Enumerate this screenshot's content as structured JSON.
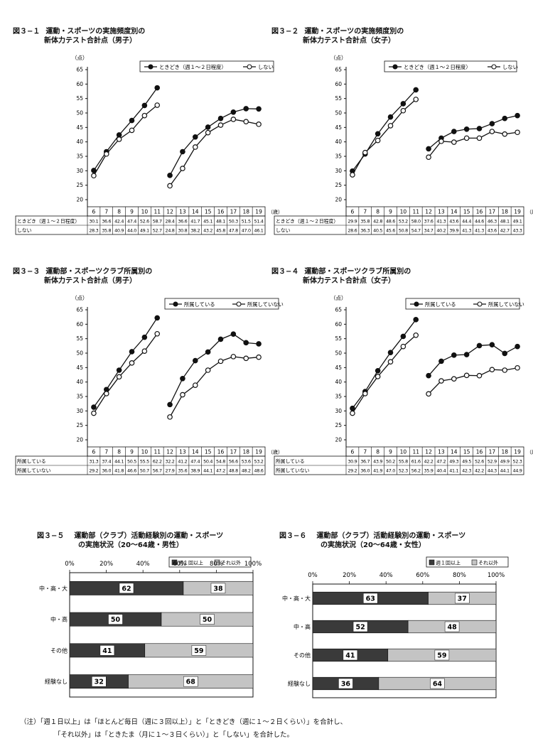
{
  "chart_data": [
    {
      "type": "line",
      "fig": "図３−１",
      "title": [
        "運動・スポーツの実施頻度別の",
        "新体力テスト合計点（男子）"
      ],
      "ylabel": "（点）",
      "xunit": "（歳）",
      "ylim": [
        20,
        65
      ],
      "yticks": [
        20,
        25,
        30,
        35,
        40,
        45,
        50,
        55,
        60,
        65
      ],
      "x": [
        "6",
        "7",
        "8",
        "9",
        "10",
        "11",
        "12",
        "13",
        "14",
        "15",
        "16",
        "17",
        "18",
        "19"
      ],
      "series": [
        {
          "name": "ときどき（週１〜２日程度）",
          "marker": "filled",
          "values": [
            30.1,
            36.6,
            42.4,
            47.4,
            52.6,
            58.7,
            28.4,
            36.6,
            41.7,
            45.1,
            48.1,
            50.3,
            51.5,
            51.4
          ]
        },
        {
          "name": "しない",
          "marker": "open",
          "values": [
            28.3,
            35.8,
            40.9,
            44.0,
            49.1,
            52.7,
            24.8,
            30.8,
            38.2,
            43.2,
            45.8,
            47.8,
            47.0,
            46.1
          ]
        }
      ]
    },
    {
      "type": "line",
      "fig": "図３−２",
      "title": [
        "運動・スポーツの実施頻度別の",
        "新体力テスト合計点（女子）"
      ],
      "ylabel": "（点）",
      "xunit": "（歳）",
      "ylim": [
        20,
        65
      ],
      "yticks": [
        20,
        25,
        30,
        35,
        40,
        45,
        50,
        55,
        60,
        65
      ],
      "x": [
        "6",
        "7",
        "8",
        "9",
        "10",
        "11",
        "12",
        "13",
        "14",
        "15",
        "16",
        "17",
        "18",
        "19"
      ],
      "series": [
        {
          "name": "ときどき（週１〜２日程度）",
          "marker": "filled",
          "values": [
            29.9,
            35.8,
            42.8,
            48.6,
            53.2,
            58.0,
            37.6,
            41.3,
            43.6,
            44.4,
            44.6,
            46.3,
            48.1,
            49.1
          ]
        },
        {
          "name": "しない",
          "marker": "open",
          "values": [
            28.6,
            36.3,
            40.5,
            45.6,
            50.8,
            54.7,
            34.7,
            40.2,
            39.9,
            41.3,
            41.3,
            43.6,
            42.7,
            43.3
          ]
        }
      ]
    },
    {
      "type": "line",
      "fig": "図３−３",
      "title": [
        "運動部・スポーツクラブ所属別の",
        "新体力テスト合計点（男子）"
      ],
      "ylabel": "（点）",
      "xunit": "（歳）",
      "ylim": [
        20,
        65
      ],
      "yticks": [
        20,
        25,
        30,
        35,
        40,
        45,
        50,
        55,
        60,
        65
      ],
      "x": [
        "6",
        "7",
        "8",
        "9",
        "10",
        "11",
        "12",
        "13",
        "14",
        "15",
        "16",
        "17",
        "18",
        "19"
      ],
      "series": [
        {
          "name": "所属している",
          "marker": "filled",
          "values": [
            31.3,
            37.4,
            44.1,
            50.5,
            55.5,
            62.2,
            32.2,
            41.2,
            47.4,
            50.4,
            54.8,
            56.6,
            53.6,
            53.2
          ]
        },
        {
          "name": "所属していない",
          "marker": "open",
          "values": [
            29.2,
            36.0,
            41.8,
            46.6,
            50.7,
            56.7,
            27.9,
            35.6,
            38.9,
            44.1,
            47.2,
            48.8,
            48.2,
            48.6
          ]
        }
      ]
    },
    {
      "type": "line",
      "fig": "図３−４",
      "title": [
        "運動部・スポーツクラブ所属別の",
        "新体力テスト合計点（女子）"
      ],
      "ylabel": "（点）",
      "xunit": "（歳）",
      "ylim": [
        20,
        65
      ],
      "yticks": [
        20,
        25,
        30,
        35,
        40,
        45,
        50,
        55,
        60,
        65
      ],
      "x": [
        "6",
        "7",
        "8",
        "9",
        "10",
        "11",
        "12",
        "13",
        "14",
        "15",
        "16",
        "17",
        "18",
        "19"
      ],
      "series": [
        {
          "name": "所属している",
          "marker": "filled",
          "values": [
            30.9,
            36.7,
            43.9,
            50.2,
            55.8,
            61.6,
            42.2,
            47.2,
            49.3,
            49.5,
            52.6,
            52.9,
            49.9,
            52.3
          ]
        },
        {
          "name": "所属していない",
          "marker": "open",
          "values": [
            29.2,
            36.0,
            41.9,
            47.0,
            52.3,
            56.2,
            35.9,
            40.4,
            41.1,
            42.3,
            42.2,
            44.3,
            44.1,
            44.9
          ]
        }
      ]
    },
    {
      "type": "bar",
      "stacked": true,
      "orientation": "horizontal",
      "fig": "図３−５",
      "title": [
        "運動部（クラブ）活動経験別の運動・スポーツ",
        "の実施状況（20〜64歳・男性）"
      ],
      "categories": [
        "中・高・大",
        "中・高",
        "その他",
        "経験なし"
      ],
      "xticks": [
        "0%",
        "20%",
        "40%",
        "60%",
        "80%",
        "100%"
      ],
      "series": [
        {
          "name": "週１回以上",
          "color": "#3a3a3a",
          "values": [
            62,
            50,
            41,
            32
          ]
        },
        {
          "name": "それ以外",
          "color": "#c4c4c4",
          "values": [
            38,
            50,
            59,
            68
          ]
        }
      ]
    },
    {
      "type": "bar",
      "stacked": true,
      "orientation": "horizontal",
      "fig": "図３−６",
      "title": [
        "運動部（クラブ）活動経験別の運動・スポーツ",
        "の実施状況（20〜64歳・女性）"
      ],
      "categories": [
        "中・高・大",
        "中・高",
        "その他",
        "経験なし"
      ],
      "xticks": [
        "0%",
        "20%",
        "40%",
        "60%",
        "80%",
        "100%"
      ],
      "series": [
        {
          "name": "週１回以上",
          "color": "#3a3a3a",
          "values": [
            63,
            52,
            41,
            36
          ]
        },
        {
          "name": "それ以外",
          "color": "#c4c4c4",
          "values": [
            37,
            48,
            59,
            64
          ]
        }
      ]
    }
  ],
  "note": {
    "line1": "（注）「週１日以上」は「ほとんど毎日（週に３回以上）」と「ときどき（週に１〜２日くらい）」を合計し、",
    "line2": "「それ以外」は「ときたま（月に１〜３日くらい）」と「しない」を合計した。"
  }
}
